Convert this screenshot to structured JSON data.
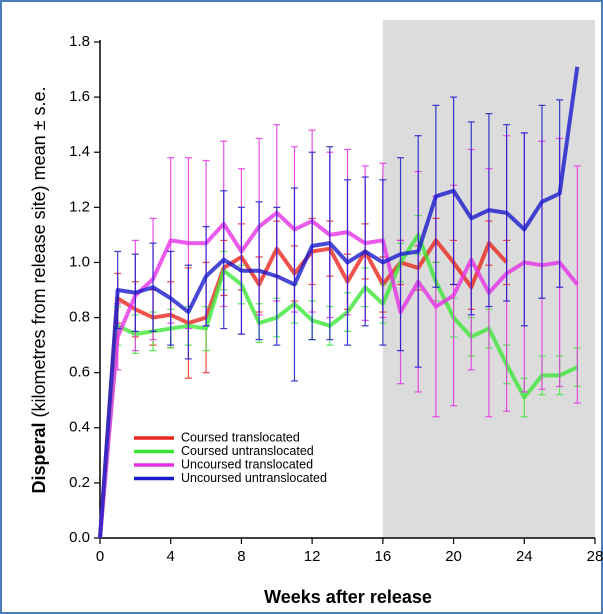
{
  "chart_data": {
    "type": "line",
    "x_label": "Weeks after release",
    "y_label_bold": "Disperal",
    "y_label_rest": "(kilometres from release site) mean ± s.e.",
    "x": [
      0,
      1,
      2,
      3,
      4,
      5,
      6,
      7,
      8,
      9,
      10,
      11,
      12,
      13,
      14,
      15,
      16,
      17,
      18,
      19,
      20,
      21,
      22,
      23,
      24,
      25,
      26,
      27
    ],
    "xlim": [
      0,
      28
    ],
    "ylim": [
      0,
      1.8
    ],
    "xticks": [
      0,
      4,
      8,
      12,
      16,
      20,
      24,
      28
    ],
    "yticks": [
      {
        "value": 0,
        "label": "0.0"
      },
      {
        "value": 0.2,
        "label": "0.2"
      },
      {
        "value": 0.4,
        "label": "0.4"
      },
      {
        "value": 0.6,
        "label": "0.6"
      },
      {
        "value": 0.8,
        "label": "0.8"
      },
      {
        "value": 1,
        "label": "1.0"
      },
      {
        "value": 1.2,
        "label": "1.2"
      },
      {
        "value": 1.4,
        "label": "1.4"
      },
      {
        "value": 1.6,
        "label": "1.6"
      },
      {
        "value": 1.8,
        "label": "1.8"
      }
    ],
    "shaded_region": [
      16,
      28
    ],
    "shade_color": "#dcdcdc",
    "legend_position": "lower left",
    "series": [
      {
        "name": "Coursed translocated",
        "color": "#e8271e",
        "values": [
          0,
          0.87,
          0.83,
          0.8,
          0.81,
          0.78,
          0.8,
          0.98,
          1.02,
          0.92,
          1.05,
          0.96,
          1.04,
          1.05,
          0.93,
          1.04,
          0.92,
          1.0,
          0.98,
          1.08,
          1.0,
          0.91,
          1.07,
          1.0,
          null,
          null,
          null,
          null
        ],
        "errors": [
          0,
          0.09,
          0.1,
          0.1,
          0.12,
          0.2,
          0.2,
          0.1,
          0.12,
          0.1,
          0.1,
          0.1,
          0.12,
          0.1,
          0.1,
          0.1,
          0.1,
          0.08,
          0.08,
          0.08,
          0.08,
          0.08,
          0.08,
          0.08,
          null,
          null,
          null,
          null
        ]
      },
      {
        "name": "Coursed untranslocated",
        "color": "#3ee63a",
        "values": [
          0,
          0.77,
          0.74,
          0.75,
          0.76,
          0.77,
          0.76,
          0.97,
          0.92,
          0.78,
          0.8,
          0.85,
          0.79,
          0.77,
          0.82,
          0.91,
          0.85,
          1.0,
          1.1,
          0.93,
          0.8,
          0.73,
          0.76,
          0.63,
          0.51,
          0.59,
          0.59,
          0.62
        ],
        "errors": [
          0,
          0.07,
          0.07,
          0.07,
          0.07,
          0.07,
          0.08,
          0.07,
          0.07,
          0.07,
          0.07,
          0.07,
          0.07,
          0.07,
          0.07,
          0.07,
          0.07,
          0.07,
          0.07,
          0.07,
          0.07,
          0.07,
          0.07,
          0.07,
          0.07,
          0.07,
          0.07,
          0.07
        ]
      },
      {
        "name": "Uncoursed translocated",
        "color": "#e632e6",
        "values": [
          0,
          0.73,
          0.88,
          0.94,
          1.08,
          1.07,
          1.07,
          1.14,
          1.04,
          1.13,
          1.18,
          1.12,
          1.15,
          1.1,
          1.11,
          1.07,
          1.08,
          0.82,
          0.93,
          0.84,
          0.88,
          1.01,
          0.89,
          0.96,
          1.0,
          0.99,
          1.0,
          0.92
        ],
        "errors": [
          0,
          0.12,
          0.2,
          0.22,
          0.3,
          0.31,
          0.3,
          0.3,
          0.3,
          0.32,
          0.32,
          0.3,
          0.33,
          0.3,
          0.3,
          0.28,
          0.28,
          0.26,
          0.4,
          0.4,
          0.4,
          0.4,
          0.45,
          0.5,
          0.47,
          0.45,
          0.45,
          0.43
        ]
      },
      {
        "name": "Uncoursed untranslocated",
        "color": "#1a1acc",
        "values": [
          0,
          0.9,
          0.89,
          0.91,
          0.87,
          0.82,
          0.95,
          1.01,
          0.97,
          0.97,
          0.95,
          0.92,
          1.06,
          1.07,
          1.0,
          1.04,
          1.0,
          1.03,
          1.04,
          1.24,
          1.26,
          1.16,
          1.19,
          1.18,
          1.12,
          1.22,
          1.25,
          1.71
        ],
        "errors": [
          0,
          0.14,
          0.14,
          0.16,
          0.17,
          0.17,
          0.18,
          0.25,
          0.23,
          0.25,
          0.25,
          0.35,
          0.34,
          0.35,
          0.3,
          0.27,
          0.3,
          0.35,
          0.42,
          0.33,
          0.34,
          0.35,
          0.35,
          0.32,
          0.35,
          0.35,
          0.34,
          0
        ]
      }
    ]
  }
}
